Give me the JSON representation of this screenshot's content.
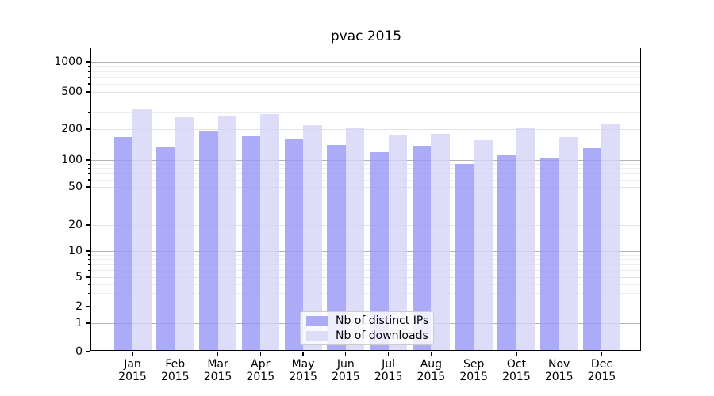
{
  "title": "pvac 2015",
  "axes": {
    "y_tick_labels": [
      "0",
      "1",
      "2",
      "5",
      "10",
      "20",
      "50",
      "100",
      "200",
      "500",
      "1000"
    ],
    "x_year_line": "2015",
    "x_month_lines": [
      "Jan",
      "Feb",
      "Mar",
      "Apr",
      "May",
      "Jun",
      "Jul",
      "Aug",
      "Sep",
      "Oct",
      "Nov",
      "Dec"
    ]
  },
  "legend": {
    "items": [
      {
        "label": "Nb of distinct IPs",
        "color": "#ababf8"
      },
      {
        "label": "Nb of downloads",
        "color": "#ddddfa"
      }
    ]
  },
  "chart_data": {
    "type": "bar",
    "title": "pvac 2015",
    "xlabel": "",
    "ylabel": "",
    "categories": [
      "Jan 2015",
      "Feb 2015",
      "Mar 2015",
      "Apr 2015",
      "May 2015",
      "Jun 2015",
      "Jul 2015",
      "Aug 2015",
      "Sep 2015",
      "Oct 2015",
      "Nov 2015",
      "Dec 2015"
    ],
    "series": [
      {
        "name": "Nb of distinct IPs",
        "color": "#ababf8",
        "values": [
          166,
          136,
          188,
          170,
          163,
          139,
          120,
          137,
          90,
          111,
          105,
          131
        ]
      },
      {
        "name": "Nb of downloads",
        "color": "#ddddfa",
        "values": [
          335,
          270,
          276,
          290,
          220,
          205,
          177,
          181,
          157,
          203,
          166,
          228
        ]
      }
    ],
    "yscale": "log (0 pinned at baseline)",
    "yticks": [
      0,
      1,
      2,
      5,
      10,
      20,
      50,
      100,
      200,
      500,
      1000
    ],
    "ylim": [
      0,
      1400
    ],
    "grid": true,
    "legend_position": "lower center"
  }
}
